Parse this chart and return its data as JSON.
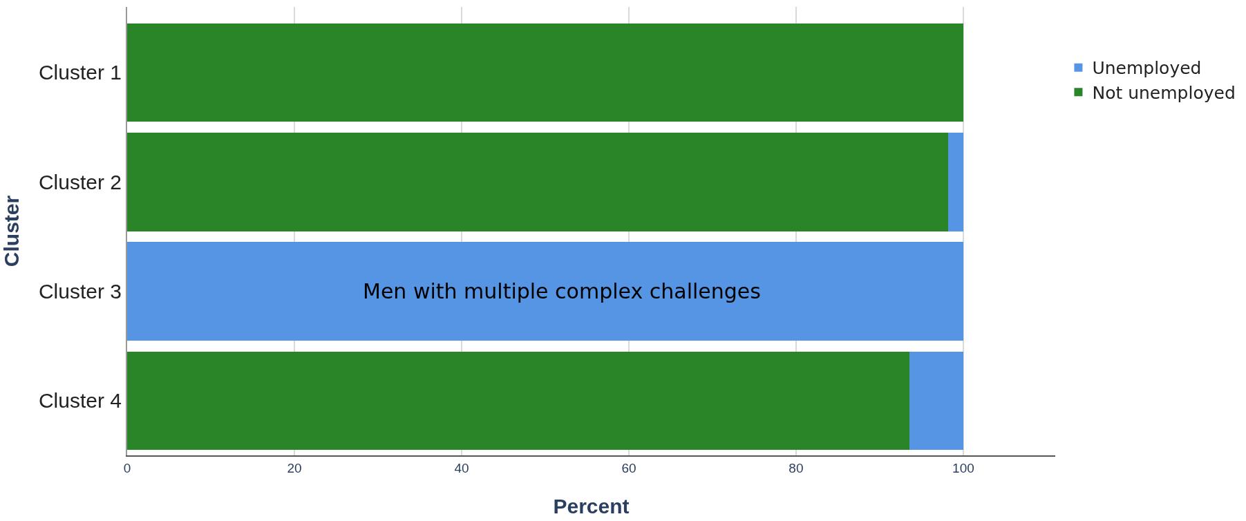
{
  "chart_data": {
    "type": "bar",
    "orientation": "horizontal",
    "stacked": true,
    "xlabel": "Percent",
    "ylabel": "Cluster",
    "categories": [
      "Cluster 1",
      "Cluster 2",
      "Cluster 3",
      "Cluster 4"
    ],
    "series": [
      {
        "name": "Not unemployed",
        "color": "#2a8428",
        "values": [
          100,
          98.2,
          0,
          93.6
        ]
      },
      {
        "name": "Unemployed",
        "color": "#5595e3",
        "values": [
          0,
          1.8,
          100,
          6.4
        ]
      }
    ],
    "xlim": [
      0,
      111
    ],
    "xticks": [
      0,
      20,
      40,
      60,
      80,
      100
    ],
    "grid": "x",
    "legend": "top right",
    "annotations": [
      {
        "text": "Men with multiple complex challenges",
        "x": 52,
        "y": "Cluster 3"
      }
    ]
  }
}
